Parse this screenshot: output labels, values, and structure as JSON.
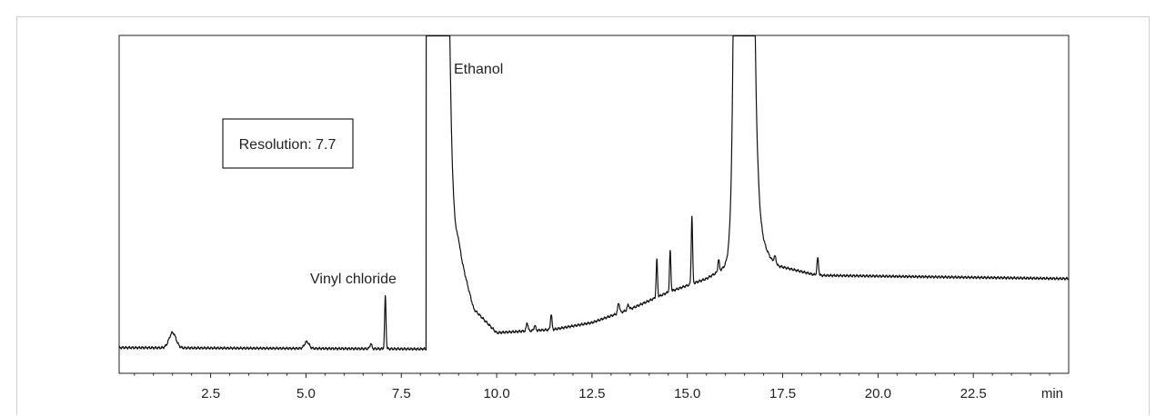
{
  "chart_data": {
    "type": "line",
    "title": "",
    "xlabel": "",
    "ylabel": "",
    "x_unit": "min",
    "xlim": [
      0.1,
      25.0
    ],
    "ylim": [
      0,
      100
    ],
    "x_ticks": [
      2.5,
      5.0,
      7.5,
      10.0,
      12.5,
      15.0,
      17.5,
      20.0,
      22.5
    ],
    "x_tick_labels": [
      "2.5",
      "5.0",
      "7.5",
      "10.0",
      "12.5",
      "15.0",
      "17.5",
      "20.0",
      "22.5"
    ],
    "grid": false,
    "legend": "none",
    "baseline": [
      [
        0.1,
        7.6
      ],
      [
        8.15,
        7.2
      ],
      [
        9.0,
        36
      ],
      [
        9.4,
        19
      ],
      [
        10.0,
        12
      ],
      [
        11.5,
        13
      ],
      [
        12.5,
        15
      ],
      [
        13.5,
        19
      ],
      [
        14.5,
        24
      ],
      [
        15.5,
        28
      ],
      [
        16.1,
        32
      ],
      [
        16.85,
        40
      ],
      [
        17.3,
        32
      ],
      [
        18.4,
        29
      ],
      [
        25.0,
        28
      ]
    ],
    "peaks": [
      {
        "rt": 1.5,
        "height": 4.5,
        "width": 0.09
      },
      {
        "rt": 5.02,
        "height": 2.0,
        "width": 0.06
      },
      {
        "rt": 6.7,
        "height": 1.5,
        "width": 0.025
      },
      {
        "rt": 7.08,
        "height": 15.5,
        "width": 0.018
      },
      {
        "rt": 10.8,
        "height": 2.5,
        "width": 0.022
      },
      {
        "rt": 11.0,
        "height": 1.5,
        "width": 0.022
      },
      {
        "rt": 11.43,
        "height": 4.5,
        "width": 0.02
      },
      {
        "rt": 13.2,
        "height": 3.0,
        "width": 0.025
      },
      {
        "rt": 13.45,
        "height": 1.5,
        "width": 0.025
      },
      {
        "rt": 14.2,
        "height": 11.0,
        "width": 0.018
      },
      {
        "rt": 14.55,
        "height": 12.0,
        "width": 0.018
      },
      {
        "rt": 15.12,
        "height": 20.0,
        "width": 0.018
      },
      {
        "rt": 15.82,
        "height": 3.5,
        "width": 0.02
      },
      {
        "rt": 17.3,
        "height": 2.5,
        "width": 0.03
      },
      {
        "rt": 18.42,
        "height": 5.0,
        "width": 0.022
      }
    ],
    "off_scale_regions": [
      {
        "name": "Ethanol",
        "rise_at": 8.15,
        "return_at": 8.75
      },
      {
        "rise_at": 16.2,
        "return_at": 16.75
      }
    ],
    "annotations": [
      {
        "text": "Vinyl chloride",
        "x": 7.08
      },
      {
        "text": "Ethanol",
        "x": 8.8
      },
      {
        "text": "Resolution: 7.7",
        "boxed": true
      }
    ],
    "line_color": "#111111"
  }
}
